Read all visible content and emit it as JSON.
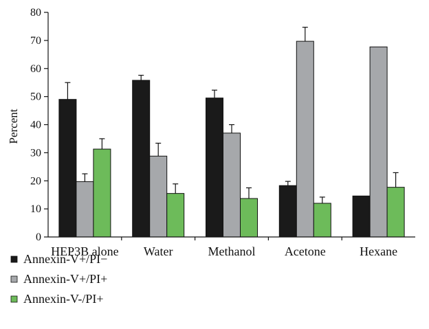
{
  "chart_data": {
    "type": "bar",
    "title": "",
    "xlabel": "",
    "ylabel": "Percent",
    "ylim": [
      0,
      80
    ],
    "yticks": [
      0,
      10,
      20,
      30,
      40,
      50,
      60,
      70,
      80
    ],
    "grid": false,
    "legend_position": "bottom-left",
    "categories": [
      "HEP3B alone",
      "Water",
      "Methanol",
      "Acetone",
      "Hexane"
    ],
    "series": [
      {
        "name": "Annexin-V+/PI−",
        "color": "#1a1a1a",
        "values": [
          49,
          55.8,
          49.5,
          18.3,
          14.6
        ],
        "errors": [
          6,
          1.8,
          2.8,
          1.5,
          0
        ]
      },
      {
        "name": "Annexin-V+/PI+",
        "color": "#a6a8ab",
        "values": [
          19.7,
          28.8,
          37,
          69.7,
          67.7
        ],
        "errors": [
          2.8,
          4.6,
          3,
          5,
          0
        ]
      },
      {
        "name": "Annexin-V-/PI+",
        "color": "#6dbb5a",
        "values": [
          31.3,
          15.5,
          13.7,
          12,
          17.7
        ],
        "errors": [
          3.7,
          3.4,
          3.8,
          2.2,
          5.2
        ]
      }
    ]
  }
}
